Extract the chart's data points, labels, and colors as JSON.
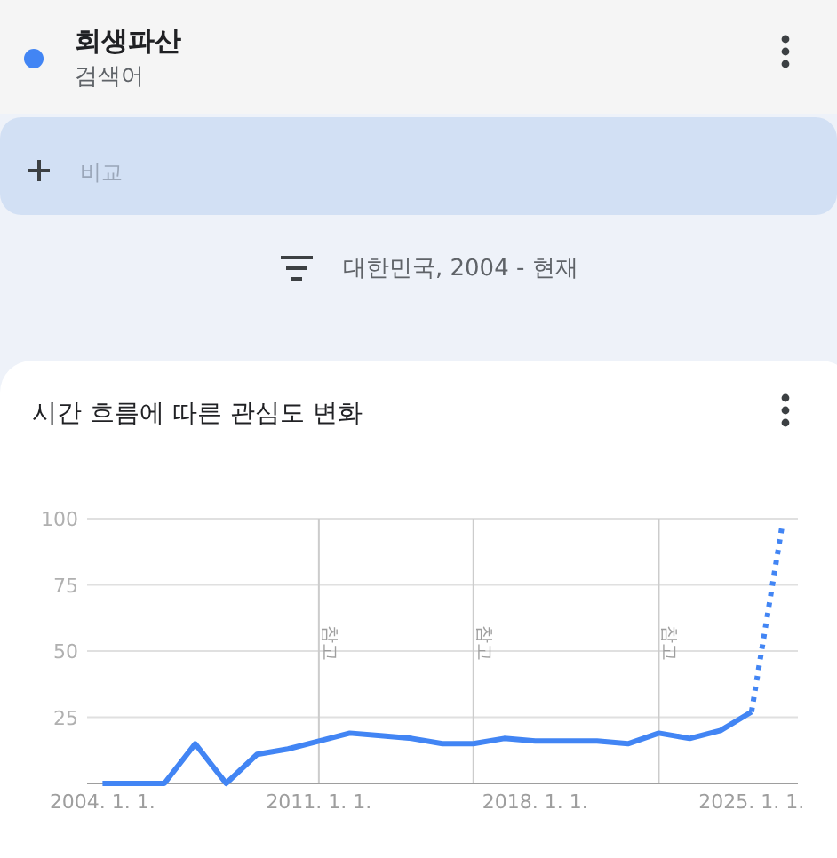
{
  "chart_data": {
    "type": "line",
    "title": "시간 흐름에 따른 관심도 변화",
    "subtitle": "대한민국, 2004 - 현재",
    "annotations": [
      "검색어",
      "비교"
    ],
    "legend": "top",
    "grid": "y",
    "marker": "none",
    "xlim": [
      "2003-07-01",
      "2026-07-01"
    ],
    "ylim": [
      0,
      100
    ],
    "xticks": [
      {
        "value": "2004-01-01",
        "label": "2004. 1. 1."
      },
      {
        "value": "2011-01-01",
        "label": "2011. 1. 1."
      },
      {
        "value": "2018-01-01",
        "label": "2018. 1. 1."
      },
      {
        "value": "2025-01-01",
        "label": "2025. 1. 1."
      }
    ],
    "yticks": [
      25,
      50,
      75,
      100
    ],
    "ref_lines": [
      {
        "axis": "x",
        "value": "2011-01-01",
        "label": "참고",
        "color": "#cccccc"
      },
      {
        "axis": "x",
        "value": "2016-01-01",
        "label": "참고",
        "color": "#cccccc"
      },
      {
        "axis": "x",
        "value": "2022-01-01",
        "label": "참고",
        "color": "#cccccc"
      }
    ],
    "series": [
      {
        "name": "회생파산",
        "color": "#4285f4",
        "line_style": "solid",
        "x": [
          "2004",
          "2005",
          "2006",
          "2007",
          "2008",
          "2009",
          "2010",
          "2011",
          "2012",
          "2013",
          "2014",
          "2015",
          "2016",
          "2017",
          "2018",
          "2019",
          "2020",
          "2021",
          "2022",
          "2023",
          "2024",
          "2025"
        ],
        "values": [
          0,
          0,
          0,
          15,
          0,
          11,
          13,
          16,
          19,
          18,
          17,
          15,
          15,
          17,
          16,
          16,
          16,
          15,
          19,
          17,
          20,
          27
        ]
      },
      {
        "color": "#4285f4",
        "line_style": "dotted",
        "x": [
          "2025",
          "2026"
        ],
        "values": [
          27,
          98
        ]
      }
    ]
  }
}
